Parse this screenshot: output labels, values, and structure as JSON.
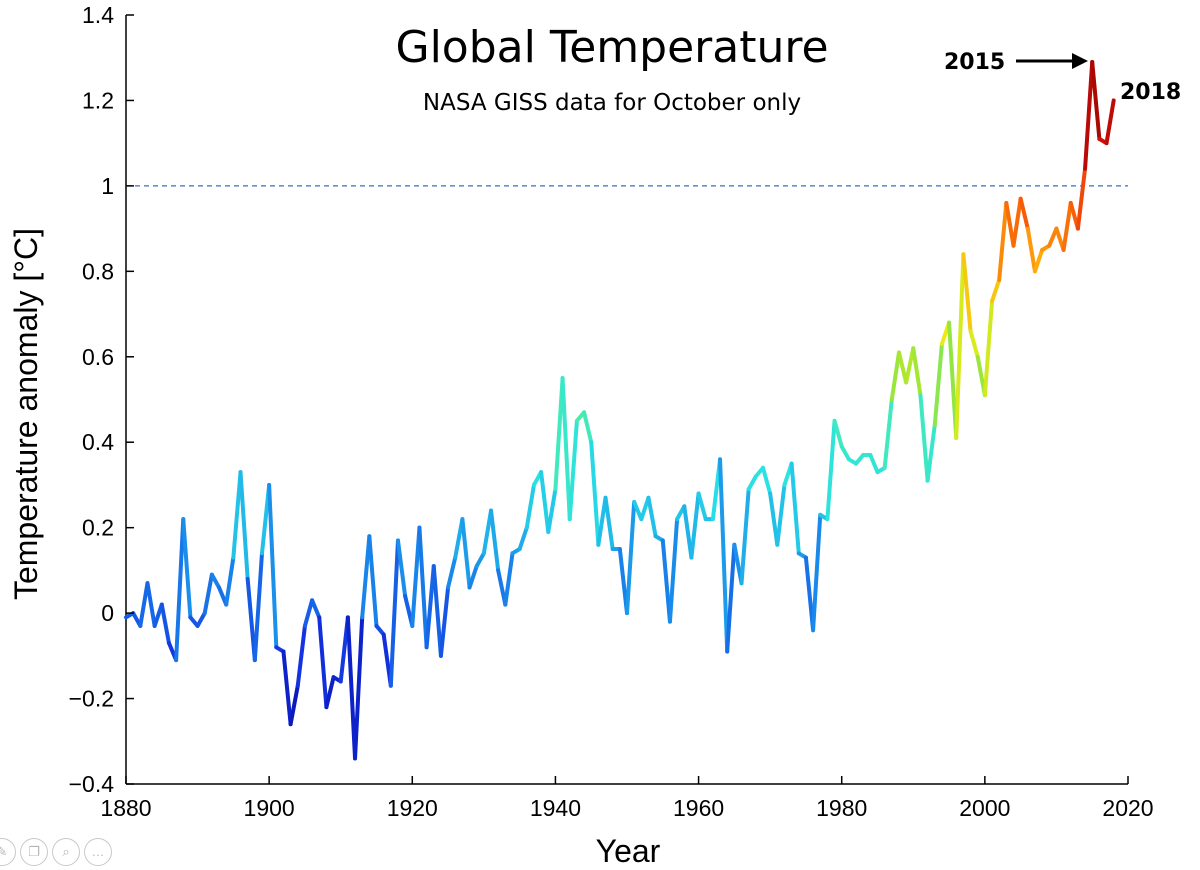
{
  "chart_data": {
    "type": "line",
    "title": "Global Temperature",
    "subtitle": "NASA GISS data for October only",
    "xlabel": "Year",
    "ylabel": "Temperature anomaly [°C]",
    "xlim": [
      1880,
      2020
    ],
    "ylim": [
      -0.4,
      1.4
    ],
    "x_ticks": [
      1880,
      1900,
      1920,
      1940,
      1960,
      1980,
      2000,
      2020
    ],
    "y_ticks": [
      -0.4,
      -0.2,
      0,
      0.2,
      0.4,
      0.6,
      0.8,
      1,
      1.2,
      1.4
    ],
    "x_tick_labels": [
      "1880",
      "1900",
      "1920",
      "1940",
      "1960",
      "1980",
      "2000",
      "2020"
    ],
    "y_tick_labels": [
      "−0.4",
      "−0.2",
      "0",
      "0.2",
      "0.4",
      "0.6",
      "0.8",
      "1",
      "1.2",
      "1.4"
    ],
    "grid": false,
    "reference_line": {
      "y": 1.0,
      "style": "dashed",
      "color": "#3b6fc9"
    },
    "color_scale": "jet (blue for low anomalies to dark red for high anomalies)",
    "series": [
      {
        "x": [
          1880,
          1881,
          1882,
          1883,
          1884,
          1885,
          1886,
          1887,
          1888,
          1889,
          1890,
          1891,
          1892,
          1893,
          1894,
          1895,
          1896,
          1897,
          1898,
          1899,
          1900,
          1901,
          1902,
          1903,
          1904,
          1905,
          1906,
          1907,
          1908,
          1909,
          1910,
          1911,
          1912,
          1913,
          1914,
          1915,
          1916,
          1917,
          1918,
          1919,
          1920,
          1921,
          1922,
          1923,
          1924,
          1925,
          1926,
          1927,
          1928,
          1929,
          1930,
          1931,
          1932,
          1933,
          1934,
          1935,
          1936,
          1937,
          1938,
          1939,
          1940,
          1941,
          1942,
          1943,
          1944,
          1945,
          1946,
          1947,
          1948,
          1949,
          1950,
          1951,
          1952,
          1953,
          1954,
          1955,
          1956,
          1957,
          1958,
          1959,
          1960,
          1961,
          1962,
          1963,
          1964,
          1965,
          1966,
          1967,
          1968,
          1969,
          1970,
          1971,
          1972,
          1973,
          1974,
          1975,
          1976,
          1977,
          1978,
          1979,
          1980,
          1981,
          1982,
          1983,
          1984,
          1985,
          1986,
          1987,
          1988,
          1989,
          1990,
          1991,
          1992,
          1993,
          1994,
          1995,
          1996,
          1997,
          1998,
          1999,
          2000,
          2001,
          2002,
          2003,
          2004,
          2005,
          2006,
          2007,
          2008,
          2009,
          2010,
          2011,
          2012,
          2013,
          2014,
          2015,
          2016,
          2017,
          2018
        ],
        "y": [
          -0.01,
          0.0,
          -0.03,
          0.07,
          -0.03,
          0.02,
          -0.07,
          -0.11,
          0.22,
          -0.01,
          -0.03,
          0.0,
          0.09,
          0.06,
          0.02,
          0.13,
          0.33,
          0.08,
          -0.11,
          0.14,
          0.3,
          -0.08,
          -0.09,
          -0.26,
          -0.17,
          -0.03,
          0.03,
          -0.01,
          -0.22,
          -0.15,
          -0.16,
          -0.01,
          -0.34,
          -0.01,
          0.18,
          -0.03,
          -0.05,
          -0.17,
          0.17,
          0.04,
          -0.03,
          0.2,
          -0.08,
          0.11,
          -0.1,
          0.06,
          0.13,
          0.22,
          0.06,
          0.11,
          0.14,
          0.24,
          0.1,
          0.02,
          0.14,
          0.15,
          0.2,
          0.3,
          0.33,
          0.19,
          0.29,
          0.55,
          0.22,
          0.45,
          0.47,
          0.4,
          0.16,
          0.27,
          0.15,
          0.15,
          0.0,
          0.26,
          0.22,
          0.27,
          0.18,
          0.17,
          -0.02,
          0.22,
          0.25,
          0.13,
          0.28,
          0.22,
          0.22,
          0.36,
          -0.09,
          0.16,
          0.07,
          0.29,
          0.32,
          0.34,
          0.28,
          0.16,
          0.3,
          0.35,
          0.14,
          0.13,
          -0.04,
          0.23,
          0.22,
          0.45,
          0.39,
          0.36,
          0.35,
          0.37,
          0.37,
          0.33,
          0.34,
          0.5,
          0.61,
          0.54,
          0.62,
          0.51,
          0.31,
          0.44,
          0.63,
          0.68,
          0.41,
          0.84,
          0.66,
          0.6,
          0.51,
          0.73,
          0.78,
          0.96,
          0.86,
          0.97,
          0.9,
          0.8,
          0.85,
          0.86,
          0.9,
          0.85,
          0.96,
          0.9,
          1.04,
          1.29,
          1.11,
          1.1,
          1.2
        ]
      }
    ],
    "annotations": [
      {
        "label": "2015",
        "target_year": 2015,
        "arrow": true
      },
      {
        "label": "2018",
        "target_year": 2018,
        "arrow": false
      }
    ]
  },
  "viewer_controls": [
    {
      "name": "edit-icon",
      "glyph": "✎"
    },
    {
      "name": "copy-icon",
      "glyph": "❐"
    },
    {
      "name": "zoom-icon",
      "glyph": "⌕"
    },
    {
      "name": "more-icon",
      "glyph": "…"
    }
  ]
}
